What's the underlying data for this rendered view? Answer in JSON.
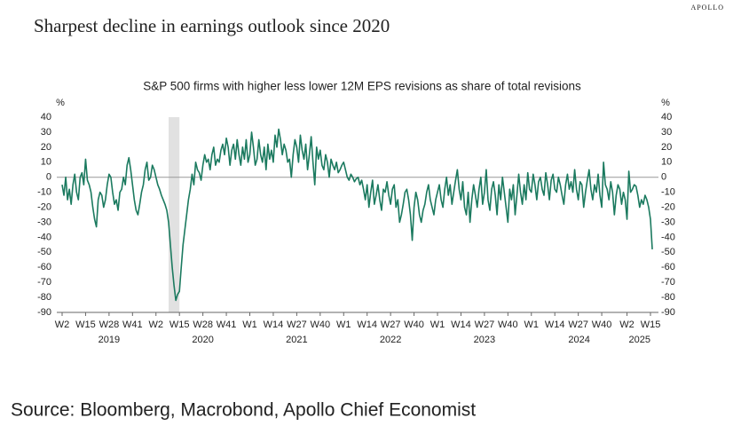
{
  "chart_data": {
    "type": "line",
    "title": "Sharpest decline in earnings outlook since 2020",
    "brand": "APOLLO",
    "subtitle": "S&P 500 firms with higher less lower 12M EPS revisions as share of total revisions",
    "y_unit": "%",
    "y2_unit": "%",
    "source": "Source: Bloomberg, Macrobond, Apollo Chief Economist",
    "ylim": [
      -90,
      40
    ],
    "yticks": [
      -90,
      -80,
      -70,
      -60,
      -50,
      -40,
      -30,
      -20,
      -10,
      0,
      10,
      20,
      30,
      40
    ],
    "y2lim": [
      -90,
      40
    ],
    "y2ticks": [
      -90,
      -80,
      -70,
      -60,
      -50,
      -40,
      -30,
      -20,
      -10,
      0,
      10,
      20,
      30,
      40
    ],
    "year_labels": [
      "2019",
      "2020",
      "2021",
      "2022",
      "2023",
      "2024",
      "2025"
    ],
    "shaded_span": {
      "start": 59,
      "end": 65
    },
    "categories": [
      "W2",
      null,
      null,
      null,
      null,
      null,
      null,
      null,
      null,
      null,
      null,
      null,
      null,
      "W15",
      null,
      null,
      null,
      null,
      null,
      null,
      null,
      null,
      null,
      null,
      null,
      null,
      "W28",
      null,
      null,
      null,
      null,
      null,
      null,
      null,
      null,
      null,
      null,
      null,
      null,
      "W41",
      null,
      null,
      null,
      null,
      null,
      null,
      null,
      null,
      null,
      null,
      null,
      null,
      "W2",
      null,
      null,
      null,
      null,
      null,
      null,
      null,
      null,
      null,
      null,
      null,
      null,
      "W15",
      null,
      null,
      null,
      null,
      null,
      null,
      null,
      null,
      null,
      null,
      null,
      null,
      "W28",
      null,
      null,
      null,
      null,
      null,
      null,
      null,
      null,
      null,
      null,
      null,
      null,
      "W41",
      null,
      null,
      null,
      null,
      null,
      null,
      null,
      null,
      null,
      null,
      null,
      null,
      "W1",
      null,
      null,
      null,
      null,
      null,
      null,
      null,
      null,
      null,
      null,
      null,
      null,
      "W14",
      null,
      null,
      null,
      null,
      null,
      null,
      null,
      null,
      null,
      null,
      null,
      null,
      "W27",
      null,
      null,
      null,
      null,
      null,
      null,
      null,
      null,
      null,
      null,
      null,
      null,
      "W40",
      null,
      null,
      null,
      null,
      null,
      null,
      null,
      null,
      null,
      null,
      null,
      null,
      "W1",
      null,
      null,
      null,
      null,
      null,
      null,
      null,
      null,
      null,
      null,
      null,
      null,
      "W14",
      null,
      null,
      null,
      null,
      null,
      null,
      null,
      null,
      null,
      null,
      null,
      null,
      "W27",
      null,
      null,
      null,
      null,
      null,
      null,
      null,
      null,
      null,
      null,
      null,
      null,
      "W40",
      null,
      null,
      null,
      null,
      null,
      null,
      null,
      null,
      null,
      null,
      null,
      null,
      "W1",
      null,
      null,
      null,
      null,
      null,
      null,
      null,
      null,
      null,
      null,
      null,
      null,
      "W14",
      null,
      null,
      null,
      null,
      null,
      null,
      null,
      null,
      null,
      null,
      null,
      null,
      "W27",
      null,
      null,
      null,
      null,
      null,
      null,
      null,
      null,
      null,
      null,
      null,
      null,
      "W40",
      null,
      null,
      null,
      null,
      null,
      null,
      null,
      null,
      null,
      null,
      null,
      null,
      "W1",
      null,
      null,
      null,
      null,
      null,
      null,
      null,
      null,
      null,
      null,
      null,
      null,
      "W14",
      null,
      null,
      null,
      null,
      null,
      null,
      null,
      null,
      null,
      null,
      null,
      null,
      "W27",
      null,
      null,
      null,
      null,
      null,
      null,
      null,
      null,
      null,
      null,
      null,
      null,
      "W40",
      null,
      null,
      null,
      null,
      null,
      null,
      null,
      null,
      null,
      null,
      null,
      null,
      null,
      "W2",
      null,
      null,
      null,
      null,
      null,
      null,
      null,
      null,
      null,
      null,
      null,
      null,
      "W15",
      null
    ],
    "series": [
      {
        "name": "S&P 500 EPS revisions",
        "color": "#1b7a5f",
        "values": [
          -5,
          -12,
          0,
          -15,
          -8,
          -18,
          -5,
          2,
          -10,
          -15,
          0,
          3,
          -5,
          12,
          -2,
          -5,
          -10,
          -20,
          -28,
          -33,
          -15,
          -10,
          -12,
          -20,
          -15,
          -5,
          2,
          0,
          -10,
          -18,
          -15,
          -22,
          -10,
          -8,
          0,
          -5,
          8,
          13,
          5,
          -5,
          -15,
          -22,
          -25,
          -18,
          -10,
          -5,
          5,
          10,
          -2,
          0,
          8,
          5,
          0,
          -5,
          -8,
          -12,
          -15,
          -18,
          -22,
          -30,
          -45,
          -60,
          -72,
          -82,
          -78,
          -76,
          -60,
          -45,
          -35,
          -25,
          -15,
          -8,
          2,
          -5,
          10,
          5,
          3,
          -2,
          8,
          15,
          10,
          12,
          5,
          15,
          20,
          8,
          12,
          10,
          18,
          22,
          15,
          26,
          20,
          8,
          18,
          22,
          12,
          25,
          15,
          8,
          20,
          12,
          25,
          10,
          15,
          30,
          20,
          8,
          12,
          25,
          15,
          10,
          20,
          5,
          22,
          12,
          18,
          10,
          28,
          20,
          32,
          25,
          15,
          22,
          18,
          10,
          12,
          0,
          15,
          25,
          20,
          10,
          28,
          18,
          12,
          22,
          5,
          15,
          27,
          10,
          -5,
          20,
          12,
          18,
          8,
          5,
          15,
          10,
          0,
          12,
          8,
          5,
          10,
          3,
          5,
          8,
          10,
          5,
          0,
          -2,
          2,
          0,
          -3,
          -1,
          0,
          -5,
          -2,
          -8,
          -15,
          -5,
          -20,
          -10,
          -2,
          -18,
          -12,
          -5,
          -15,
          -22,
          -8,
          -10,
          -3,
          -12,
          -18,
          -8,
          -5,
          -20,
          -15,
          -30,
          -25,
          -18,
          -10,
          -8,
          -15,
          -25,
          -42,
          -20,
          -10,
          -15,
          -25,
          -30,
          -22,
          -18,
          -10,
          -5,
          -15,
          -20,
          -25,
          -15,
          -10,
          -5,
          -15,
          -20,
          -8,
          0,
          -12,
          -5,
          -18,
          -10,
          -2,
          5,
          -8,
          -15,
          -3,
          -20,
          -25,
          -10,
          -30,
          -15,
          -5,
          -12,
          -20,
          -8,
          0,
          -18,
          -10,
          5,
          -15,
          -22,
          -8,
          -3,
          -12,
          -25,
          -5,
          -15,
          0,
          -10,
          -20,
          -30,
          -8,
          -15,
          -5,
          -25,
          -12,
          2,
          -10,
          -18,
          -5,
          -15,
          3,
          -8,
          -10,
          2,
          -5,
          -15,
          -3,
          0,
          -8,
          -12,
          3,
          -5,
          -15,
          -2,
          2,
          -8,
          -10,
          0,
          -5,
          -12,
          -18,
          -5,
          2,
          -8,
          -3,
          -10,
          5,
          -8,
          -15,
          -3,
          -5,
          -20,
          -10,
          -2,
          5,
          -8,
          -15,
          -5,
          -10,
          2,
          -12,
          -20,
          10,
          -5,
          -8,
          -15,
          -3,
          -10,
          -25,
          -12,
          -5,
          -8,
          -18,
          -10,
          -15,
          -28,
          4,
          -10,
          -8,
          -5,
          -6,
          -12,
          -20,
          -15,
          -18,
          -12,
          -15,
          -20,
          -28,
          -48
        ]
      }
    ]
  }
}
